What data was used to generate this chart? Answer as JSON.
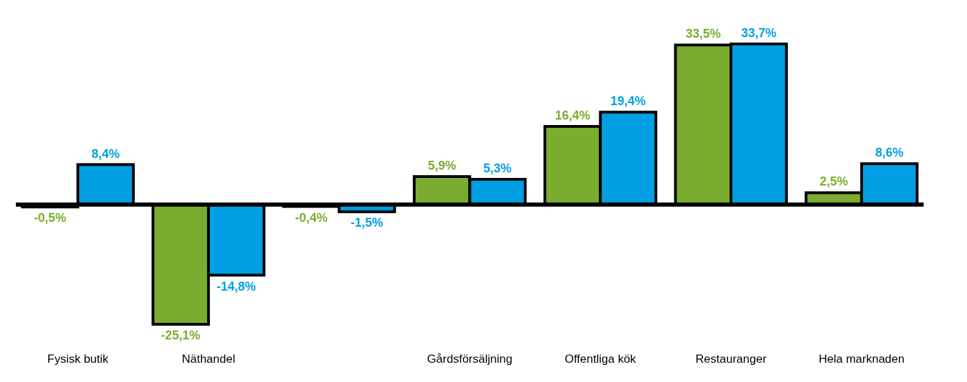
{
  "chart_data": {
    "type": "bar",
    "categories": [
      "Fysisk butik",
      "Näthandel",
      null,
      "Gårdsförsäljning",
      "Offentliga kök",
      "Restauranger",
      "Hela marknaden"
    ],
    "series": [
      {
        "color": "#7aad2f",
        "values": [
          -0.5,
          -25.1,
          -0.4,
          5.9,
          16.4,
          33.5,
          2.5
        ],
        "value_labels": [
          "-0,5%",
          "-25,1%",
          "-0,4%",
          "5,9%",
          "16,4%",
          "33,5%",
          "2,5%"
        ]
      },
      {
        "color": "#009fe3",
        "values": [
          8.4,
          -14.8,
          -1.5,
          5.3,
          19.4,
          33.7,
          8.6
        ],
        "value_labels": [
          "8,4%",
          "-14,8%",
          "-1,5%",
          "5,3%",
          "19,4%",
          "33,7%",
          "8,6%"
        ]
      }
    ],
    "grid": false,
    "legend": false
  }
}
